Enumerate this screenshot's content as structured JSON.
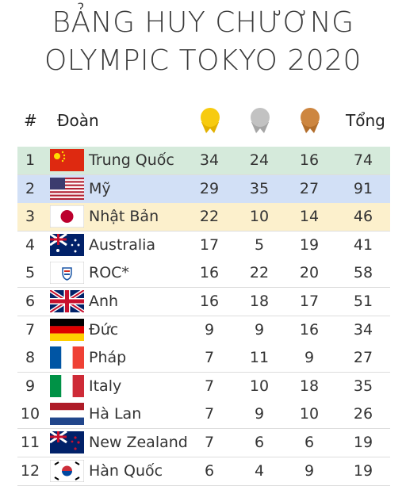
{
  "header": {
    "title": [
      "BẢNG HUY CHƯƠNG",
      "OLYMPIC TOKYO 2020"
    ]
  },
  "table": {
    "headers": [
      "#",
      "Đoàn",
      "Tổng"
    ],
    "rows": [
      [
        1,
        "Trung Quốc",
        34,
        24,
        16,
        74
      ],
      [
        2,
        "Mỹ",
        29,
        35,
        27,
        91
      ],
      [
        3,
        "Nhật Bản",
        22,
        10,
        14,
        46
      ],
      [
        4,
        "Australia",
        17,
        5,
        19,
        41
      ],
      [
        5,
        "ROC*",
        16,
        22,
        20,
        58
      ],
      [
        6,
        "Anh",
        16,
        18,
        17,
        51
      ],
      [
        7,
        "Đức",
        9,
        9,
        16,
        34
      ],
      [
        8,
        "Pháp",
        7,
        11,
        9,
        27
      ],
      [
        9,
        "Italy",
        7,
        10,
        18,
        35
      ],
      [
        10,
        "Hà Lan",
        7,
        9,
        10,
        26
      ],
      [
        11,
        "New Zealand",
        7,
        6,
        6,
        19
      ],
      [
        12,
        "Hàn Quốc",
        6,
        4,
        9,
        19
      ]
    ]
  }
}
